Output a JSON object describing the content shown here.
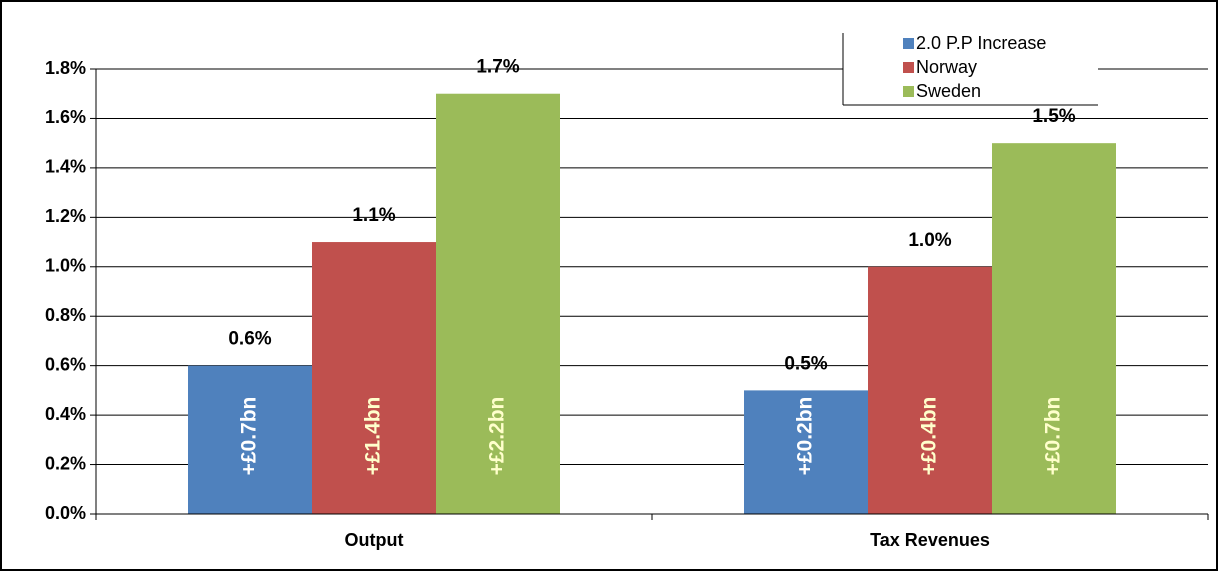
{
  "chart_data": {
    "type": "bar",
    "categories": [
      "Output",
      "Tax Revenues"
    ],
    "series": [
      {
        "name": "2.0 P.P Increase",
        "color": "#4f81bd",
        "values": [
          0.6,
          0.5
        ],
        "value_labels": [
          "0.6%",
          "0.5%"
        ],
        "inner_labels": [
          "+£0.7bn",
          "+£0.2bn"
        ],
        "inner_label_color": "#ffffff"
      },
      {
        "name": "Norway",
        "color": "#c0504d",
        "values": [
          1.1,
          1.0
        ],
        "value_labels": [
          "1.1%",
          "1.0%"
        ],
        "inner_labels": [
          "+£1.4bn",
          "+£0.4bn"
        ],
        "inner_label_color": "#ffffcc"
      },
      {
        "name": "Sweden",
        "color": "#9bbb59",
        "values": [
          1.7,
          1.5
        ],
        "value_labels": [
          "1.7%",
          "1.5%"
        ],
        "inner_labels": [
          "+£2.2bn",
          "+£0.7bn"
        ],
        "inner_label_color": "#ffffcc"
      }
    ],
    "ylim": [
      0,
      1.8
    ],
    "yticks": [
      {
        "value": 0,
        "label": "0.0%"
      },
      {
        "value": 0.2,
        "label": "0.2%"
      },
      {
        "value": 0.4,
        "label": "0.4%"
      },
      {
        "value": 0.6,
        "label": "0.6%"
      },
      {
        "value": 0.8,
        "label": "0.8%"
      },
      {
        "value": 1.0,
        "label": "1.0%"
      },
      {
        "value": 1.2,
        "label": "1.2%"
      },
      {
        "value": 1.4,
        "label": "1.4%"
      },
      {
        "value": 1.6,
        "label": "1.6%"
      },
      {
        "value": 1.8,
        "label": "1.8%"
      }
    ],
    "grid": true,
    "legend": "top-right"
  }
}
